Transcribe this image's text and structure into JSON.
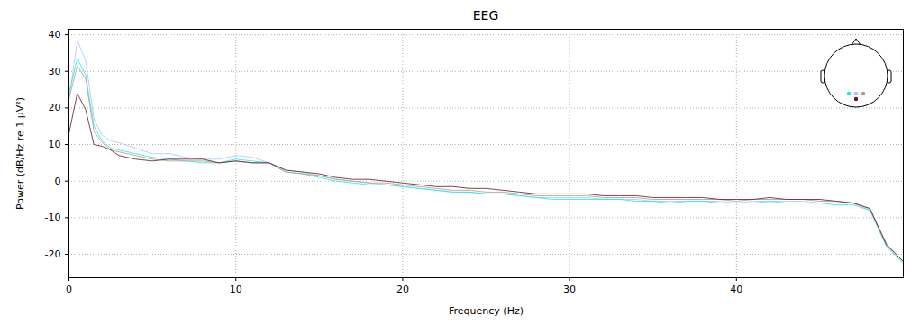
{
  "chart_data": {
    "type": "line",
    "title": "EEG",
    "x_label": "Frequency (Hz)",
    "y_label": "Power (dB/Hz re 1 µV²)",
    "x": [
      0,
      0.5,
      1,
      1.5,
      2,
      2.5,
      3,
      4,
      5,
      6,
      7,
      8,
      9,
      10,
      11,
      12,
      13,
      14,
      15,
      16,
      17,
      18,
      19,
      20,
      21,
      22,
      23,
      24,
      25,
      26,
      27,
      28,
      29,
      30,
      31,
      32,
      33,
      34,
      35,
      36,
      37,
      38,
      39,
      40,
      41,
      42,
      43,
      44,
      45,
      46,
      47,
      48,
      49,
      50
    ],
    "series": [
      {
        "color": "#a4c4ff",
        "values": [
          22,
          38.5,
          33,
          17,
          12.5,
          11,
          10.5,
          9,
          7.5,
          7.5,
          6.5,
          6,
          6,
          7,
          6.5,
          5,
          3,
          2.5,
          1.5,
          0.5,
          0,
          -0.5,
          -1,
          -1.5,
          -2,
          -2.5,
          -3,
          -3,
          -3.5,
          -3.5,
          -4,
          -4.5,
          -4.5,
          -4.5,
          -4.5,
          -5,
          -5,
          -5,
          -5.5,
          -5.5,
          -5.5,
          -5.5,
          -5.5,
          -6,
          -5.5,
          -5.5,
          -5.5,
          -5.5,
          -6,
          -6,
          -6,
          -8,
          -17,
          -22
        ]
      },
      {
        "color": "#22e4f2",
        "values": [
          24,
          33.5,
          29,
          15,
          11,
          9,
          8.5,
          7.5,
          6.5,
          6,
          5.5,
          5,
          5,
          6,
          5.5,
          5,
          2.5,
          2,
          1,
          0,
          -0.5,
          -1,
          -1,
          -1.5,
          -2,
          -2.5,
          -3,
          -3,
          -3.5,
          -3.5,
          -4,
          -4.5,
          -5,
          -5,
          -5,
          -5,
          -5,
          -5.5,
          -5.5,
          -6,
          -5.5,
          -5.5,
          -6,
          -6,
          -6,
          -5.5,
          -6,
          -6,
          -6,
          -6.5,
          -6.5,
          -8,
          -18,
          -22.5
        ]
      },
      {
        "color": "#a8a07c",
        "values": [
          22.5,
          31.5,
          28,
          13.5,
          10.5,
          8.5,
          8,
          7,
          6,
          5.5,
          5.5,
          5.5,
          5,
          5.5,
          5,
          5,
          2.5,
          2,
          1.5,
          0.5,
          0,
          -0.5,
          -0.5,
          -1,
          -1.5,
          -2,
          -2.5,
          -2.5,
          -3,
          -3,
          -3.5,
          -4,
          -4,
          -4,
          -4,
          -4.5,
          -4.5,
          -4.5,
          -5,
          -5,
          -5,
          -5,
          -5,
          -5.5,
          -5,
          -5,
          -5,
          -5,
          -5.5,
          -5.5,
          -6,
          -7.5,
          -17.5,
          -22
        ]
      },
      {
        "color": "#6a1028",
        "values": [
          13,
          24,
          19.5,
          10,
          9.5,
          8.5,
          7,
          6,
          5.5,
          6,
          6,
          6,
          5,
          5.5,
          5,
          5,
          3,
          2.5,
          2,
          1,
          0.5,
          0.5,
          0,
          -0.5,
          -1,
          -1.5,
          -1.5,
          -2,
          -2,
          -2.5,
          -3,
          -3.5,
          -3.5,
          -3.5,
          -3.5,
          -4,
          -4,
          -4,
          -4.5,
          -4.5,
          -4.5,
          -4.5,
          -5,
          -5,
          -5,
          -4.5,
          -5,
          -5,
          -5,
          -5.5,
          -6,
          -7.5,
          -17.5,
          -22
        ]
      }
    ],
    "xlim": [
      0,
      50
    ],
    "ylim": [
      -26.4,
      41.5
    ],
    "xticks": [
      0,
      10,
      20,
      30,
      40
    ],
    "yticks": [
      -20,
      -10,
      0,
      10,
      20,
      30,
      40
    ],
    "grid": true
  }
}
